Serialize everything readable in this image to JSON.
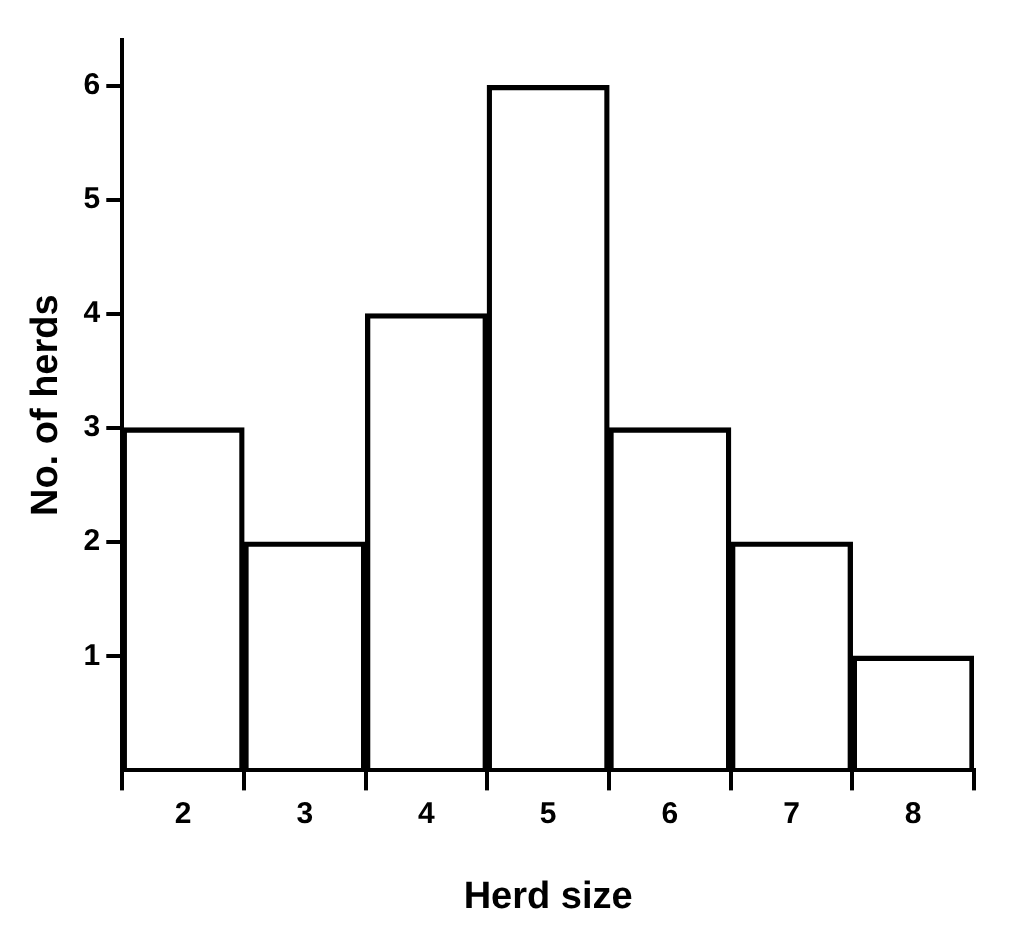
{
  "chart_data": {
    "type": "bar",
    "xlabel": "Herd size",
    "ylabel": "No. of herds",
    "categories": [
      "2",
      "3",
      "4",
      "5",
      "6",
      "7",
      "8"
    ],
    "values": [
      3,
      2,
      4,
      6,
      3,
      2,
      1
    ],
    "color": "#000000",
    "ylim": [
      0,
      6.4
    ],
    "yticks": [
      1,
      2,
      3,
      4,
      5,
      6
    ],
    "grid": false,
    "legend": false
  }
}
